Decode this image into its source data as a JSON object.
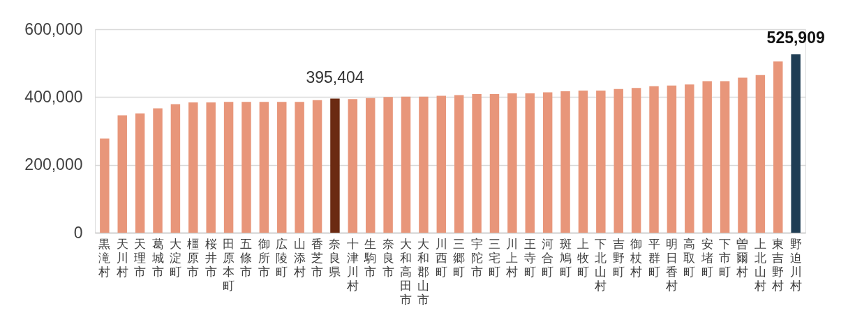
{
  "chart_data": {
    "type": "bar",
    "categories": [
      "黒滝村",
      "天川村",
      "天理市",
      "葛城市",
      "大淀町",
      "橿原市",
      "桜井市",
      "田原本町",
      "五條市",
      "御所市",
      "広陵町",
      "山添村",
      "香芝市",
      "奈良県",
      "十津川村",
      "生駒市",
      "奈良市",
      "大和高田市",
      "大和郡山市",
      "川西町",
      "三郷町",
      "宇陀市",
      "三宅町",
      "川上村",
      "王寺町",
      "河合町",
      "斑鳩町",
      "上牧町",
      "下北山村",
      "吉野町",
      "御杖村",
      "平群町",
      "明日香村",
      "高取町",
      "安堵町",
      "下市町",
      "曽爾村",
      "上北山村",
      "東吉野村",
      "野迫川村"
    ],
    "values": [
      278000,
      346000,
      352000,
      367000,
      379000,
      384000,
      384000,
      386000,
      386000,
      386000,
      386000,
      386000,
      391000,
      395404,
      394000,
      397000,
      400000,
      401000,
      401000,
      404000,
      406000,
      409000,
      409000,
      411000,
      411000,
      414000,
      417000,
      419000,
      419000,
      424000,
      427000,
      432000,
      434000,
      437000,
      447000,
      447000,
      457000,
      465000,
      505000,
      525909
    ],
    "colors": [
      "#e8967a",
      "#e8967a",
      "#e8967a",
      "#e8967a",
      "#e8967a",
      "#e8967a",
      "#e8967a",
      "#e8967a",
      "#e8967a",
      "#e8967a",
      "#e8967a",
      "#e8967a",
      "#e8967a",
      "#6b2a12",
      "#e8967a",
      "#e8967a",
      "#e8967a",
      "#e8967a",
      "#e8967a",
      "#e8967a",
      "#e8967a",
      "#e8967a",
      "#e8967a",
      "#e8967a",
      "#e8967a",
      "#e8967a",
      "#e8967a",
      "#e8967a",
      "#e8967a",
      "#e8967a",
      "#e8967a",
      "#e8967a",
      "#e8967a",
      "#e8967a",
      "#e8967a",
      "#e8967a",
      "#e8967a",
      "#e8967a",
      "#e8967a",
      "#1f3d54"
    ],
    "value_labels": [
      null,
      null,
      null,
      null,
      null,
      null,
      null,
      null,
      null,
      null,
      null,
      null,
      null,
      "395,404",
      null,
      null,
      null,
      null,
      null,
      null,
      null,
      null,
      null,
      null,
      null,
      null,
      null,
      null,
      null,
      null,
      null,
      null,
      null,
      null,
      null,
      null,
      null,
      null,
      null,
      "525,909"
    ],
    "ylim": [
      0,
      600000
    ],
    "yticks": [
      0,
      {
        "value": 200000,
        "label": "200,000"
      },
      {
        "value": 400000,
        "label": "400,000"
      },
      {
        "value": 600000,
        "label": "600,000"
      }
    ],
    "grid": "y"
  }
}
